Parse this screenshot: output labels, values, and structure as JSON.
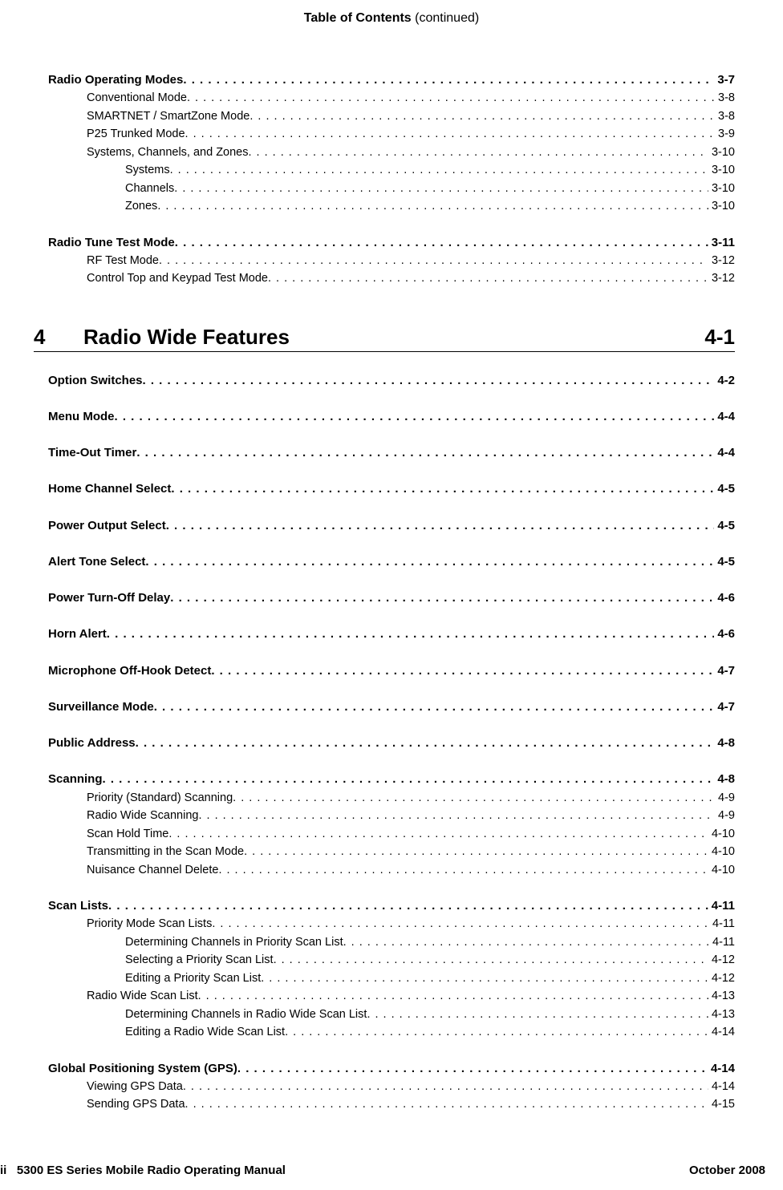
{
  "header": {
    "bold": "Table of Contents",
    "thin": " (continued)"
  },
  "preBlocks": [
    {
      "lines": [
        {
          "lvl": 0,
          "label": "Radio Operating Modes",
          "page": "3-7"
        },
        {
          "lvl": 1,
          "label": "Conventional Mode",
          "page": "3-8"
        },
        {
          "lvl": 1,
          "label": "SMARTNET / SmartZone Mode",
          "page": "3-8"
        },
        {
          "lvl": 1,
          "label": "P25 Trunked Mode",
          "page": "3-9"
        },
        {
          "lvl": 1,
          "label": "Systems, Channels, and Zones",
          "page": "3-10"
        },
        {
          "lvl": 2,
          "label": "Systems",
          "page": "3-10"
        },
        {
          "lvl": 2,
          "label": "Channels",
          "page": "3-10"
        },
        {
          "lvl": 2,
          "label": "Zones",
          "page": "3-10"
        }
      ]
    },
    {
      "lines": [
        {
          "lvl": 0,
          "label": "Radio Tune Test Mode",
          "page": "3-11"
        },
        {
          "lvl": 1,
          "label": "RF Test Mode",
          "page": "3-12"
        },
        {
          "lvl": 1,
          "label": "Control Top and Keypad Test Mode",
          "page": "3-12"
        }
      ]
    }
  ],
  "section": {
    "number": "4",
    "title": "Radio Wide Features",
    "page": "4-1"
  },
  "blocks": [
    {
      "lines": [
        {
          "lvl": 0,
          "label": "Option Switches",
          "page": "4-2"
        }
      ]
    },
    {
      "lines": [
        {
          "lvl": 0,
          "label": "Menu Mode",
          "page": "4-4"
        }
      ]
    },
    {
      "lines": [
        {
          "lvl": 0,
          "label": "Time-Out Timer",
          "page": "4-4"
        }
      ]
    },
    {
      "lines": [
        {
          "lvl": 0,
          "label": "Home Channel Select",
          "page": "4-5"
        }
      ]
    },
    {
      "lines": [
        {
          "lvl": 0,
          "label": "Power Output Select",
          "page": "4-5"
        }
      ]
    },
    {
      "lines": [
        {
          "lvl": 0,
          "label": "Alert Tone Select",
          "page": "4-5"
        }
      ]
    },
    {
      "lines": [
        {
          "lvl": 0,
          "label": "Power Turn-Off Delay",
          "page": "4-6"
        }
      ]
    },
    {
      "lines": [
        {
          "lvl": 0,
          "label": "Horn Alert",
          "page": "4-6"
        }
      ]
    },
    {
      "lines": [
        {
          "lvl": 0,
          "label": "Microphone Off-Hook Detect",
          "page": "4-7"
        }
      ]
    },
    {
      "lines": [
        {
          "lvl": 0,
          "label": "Surveillance Mode",
          "page": "4-7"
        }
      ]
    },
    {
      "lines": [
        {
          "lvl": 0,
          "label": "Public Address",
          "page": "4-8"
        }
      ]
    },
    {
      "lines": [
        {
          "lvl": 0,
          "label": "Scanning",
          "page": "4-8"
        },
        {
          "lvl": 1,
          "label": "Priority (Standard) Scanning",
          "page": "4-9"
        },
        {
          "lvl": 1,
          "label": "Radio Wide Scanning",
          "page": "4-9"
        },
        {
          "lvl": 1,
          "label": "Scan Hold Time",
          "page": "4-10"
        },
        {
          "lvl": 1,
          "label": "Transmitting in the Scan Mode",
          "page": "4-10"
        },
        {
          "lvl": 1,
          "label": "Nuisance Channel Delete",
          "page": "4-10"
        }
      ]
    },
    {
      "lines": [
        {
          "lvl": 0,
          "label": "Scan Lists",
          "page": "4-11"
        },
        {
          "lvl": 1,
          "label": "Priority Mode Scan Lists",
          "page": "4-11"
        },
        {
          "lvl": 2,
          "label": "Determining Channels in Priority Scan List",
          "page": "4-11"
        },
        {
          "lvl": 2,
          "label": "Selecting a Priority Scan List",
          "page": "4-12"
        },
        {
          "lvl": 2,
          "label": "Editing a Priority Scan List",
          "page": "4-12"
        },
        {
          "lvl": 1,
          "label": "Radio Wide Scan List",
          "page": "4-13"
        },
        {
          "lvl": 2,
          "label": "Determining Channels in Radio Wide Scan List",
          "page": "4-13"
        },
        {
          "lvl": 2,
          "label": "Editing a Radio Wide Scan List",
          "page": "4-14"
        }
      ]
    },
    {
      "lines": [
        {
          "lvl": 0,
          "label": "Global Positioning System (GPS)",
          "page": "4-14"
        },
        {
          "lvl": 1,
          "label": "Viewing GPS Data",
          "page": "4-14"
        },
        {
          "lvl": 1,
          "label": "Sending GPS Data",
          "page": "4-15"
        }
      ]
    }
  ],
  "footer": {
    "left_prefix": "ii",
    "left_main": "5300 ES Series Mobile Radio Operating Manual",
    "right": "October 2008"
  }
}
